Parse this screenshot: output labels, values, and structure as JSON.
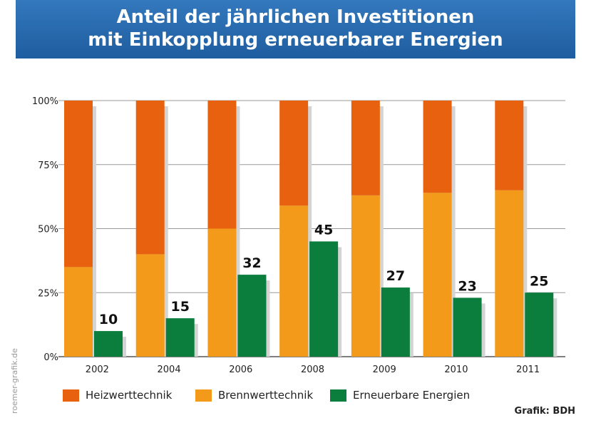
{
  "header": {
    "title_line1": "Anteil der jährlichen Investitionen",
    "title_line2": "mit Einkopplung erneuerbarer Energien"
  },
  "credit": "Grafik: BDH",
  "vertical_credit": "roemer-grafik.de",
  "colors": {
    "heizwert": "#e8610e",
    "brennwert": "#f39a1a",
    "erneuerbar": "#0b7d3c",
    "shadow": "#d4d4d4",
    "header_bg": "#2a6cb0"
  },
  "legend": [
    {
      "label": "Heizwerttechnik",
      "color": "#e8610e"
    },
    {
      "label": "Brennwerttechnik",
      "color": "#f39a1a"
    },
    {
      "label": "Erneuerbare Energien",
      "color": "#0b7d3c"
    }
  ],
  "chart_data": {
    "type": "bar",
    "title": "Anteil der jährlichen Investitionen mit Einkopplung erneuerbarer Energien",
    "categories": [
      "2002",
      "2004",
      "2006",
      "2008",
      "2009",
      "2010",
      "2011"
    ],
    "series": [
      {
        "name": "Heizwerttechnik",
        "values": [
          65,
          60,
          50,
          41,
          37,
          36,
          35
        ],
        "stacked_on": "Brennwerttechnik"
      },
      {
        "name": "Brennwerttechnik",
        "values": [
          35,
          40,
          50,
          59,
          63,
          64,
          65
        ]
      },
      {
        "name": "Erneuerbare Energien",
        "values": [
          10,
          15,
          32,
          45,
          27,
          23,
          25
        ]
      }
    ],
    "data_labels": [
      "10",
      "15",
      "32",
      "45",
      "27",
      "23",
      "25"
    ],
    "y_ticks": [
      "0%",
      "25%",
      "50%",
      "75%",
      "100%"
    ],
    "ylim": [
      0,
      100
    ],
    "grid": true,
    "legend_position": "bottom"
  }
}
